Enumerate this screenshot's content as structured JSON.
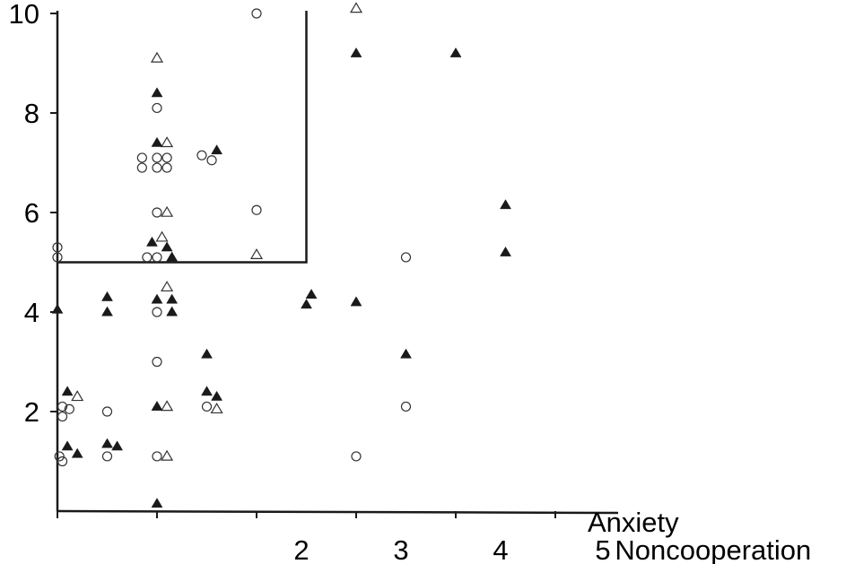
{
  "chart_data": {
    "type": "scatter",
    "xlabel": "Noncooperation",
    "ylabel": "Anxiety",
    "xlim": [
      0,
      5
    ],
    "ylim": [
      0,
      10
    ],
    "x_tick_labels": [
      {
        "value": 2.45,
        "label": "2"
      },
      {
        "value": 3.45,
        "label": "3"
      },
      {
        "value": 4.45,
        "label": "4"
      },
      {
        "value": 5.4,
        "label": "5"
      }
    ],
    "y_tick_labels": [
      {
        "value": 10,
        "label": "10"
      },
      {
        "value": 8,
        "label": "8"
      },
      {
        "value": 6,
        "label": "6"
      },
      {
        "value": 4,
        "label": "4"
      },
      {
        "value": 2,
        "label": "2"
      }
    ],
    "x_tick_values": [
      0,
      1,
      2,
      3,
      4,
      5
    ],
    "y_tick_values": [
      2,
      4,
      6,
      8,
      10
    ],
    "region_box": {
      "x_max": 2.5,
      "y_min": 5
    },
    "series": [
      {
        "marker": "circle-open",
        "points": [
          [
            0.0,
            5.3
          ],
          [
            0.0,
            5.1
          ],
          [
            0.05,
            2.1
          ],
          [
            0.05,
            1.9
          ],
          [
            0.12,
            2.05
          ],
          [
            0.02,
            1.1
          ],
          [
            0.05,
            1.0
          ],
          [
            1.0,
            8.1
          ],
          [
            0.85,
            7.1
          ],
          [
            1.0,
            7.1
          ],
          [
            1.1,
            7.1
          ],
          [
            0.85,
            6.9
          ],
          [
            1.0,
            6.9
          ],
          [
            1.1,
            6.9
          ],
          [
            1.0,
            6.0
          ],
          [
            0.9,
            5.1
          ],
          [
            1.0,
            5.1
          ],
          [
            1.0,
            4.0
          ],
          [
            1.0,
            3.0
          ],
          [
            1.0,
            1.1
          ],
          [
            0.5,
            2.0
          ],
          [
            0.5,
            1.1
          ],
          [
            1.45,
            7.15
          ],
          [
            1.55,
            7.05
          ],
          [
            1.5,
            2.1
          ],
          [
            2.0,
            10.0
          ],
          [
            2.0,
            6.05
          ],
          [
            3.0,
            1.1
          ],
          [
            3.5,
            2.1
          ],
          [
            3.5,
            5.1
          ]
        ]
      },
      {
        "marker": "triangle-open",
        "points": [
          [
            1.0,
            9.1
          ],
          [
            1.1,
            7.4
          ],
          [
            1.1,
            6.0
          ],
          [
            1.05,
            5.5
          ],
          [
            1.1,
            4.5
          ],
          [
            1.1,
            2.1
          ],
          [
            1.1,
            1.1
          ],
          [
            0.2,
            2.3
          ],
          [
            1.6,
            2.05
          ],
          [
            2.0,
            5.15
          ],
          [
            3.0,
            10.1
          ]
        ]
      },
      {
        "marker": "triangle-filled",
        "points": [
          [
            1.0,
            8.4
          ],
          [
            1.0,
            7.4
          ],
          [
            1.6,
            7.25
          ],
          [
            0.95,
            5.4
          ],
          [
            1.1,
            5.3
          ],
          [
            1.15,
            5.1
          ],
          [
            1.0,
            4.25
          ],
          [
            1.15,
            4.25
          ],
          [
            1.15,
            4.0
          ],
          [
            0.5,
            4.3
          ],
          [
            0.5,
            4.0
          ],
          [
            0.0,
            4.05
          ],
          [
            1.0,
            2.1
          ],
          [
            0.1,
            2.4
          ],
          [
            1.5,
            2.4
          ],
          [
            1.6,
            2.3
          ],
          [
            1.5,
            3.15
          ],
          [
            0.5,
            1.35
          ],
          [
            0.6,
            1.3
          ],
          [
            0.1,
            1.3
          ],
          [
            0.2,
            1.15
          ],
          [
            1.0,
            0.15
          ],
          [
            2.5,
            4.15
          ],
          [
            2.55,
            4.35
          ],
          [
            3.0,
            4.2
          ],
          [
            3.0,
            9.2
          ],
          [
            4.0,
            9.2
          ],
          [
            3.5,
            3.15
          ],
          [
            4.5,
            6.15
          ],
          [
            4.5,
            5.2
          ]
        ]
      }
    ],
    "legend": "none",
    "grid": false
  }
}
